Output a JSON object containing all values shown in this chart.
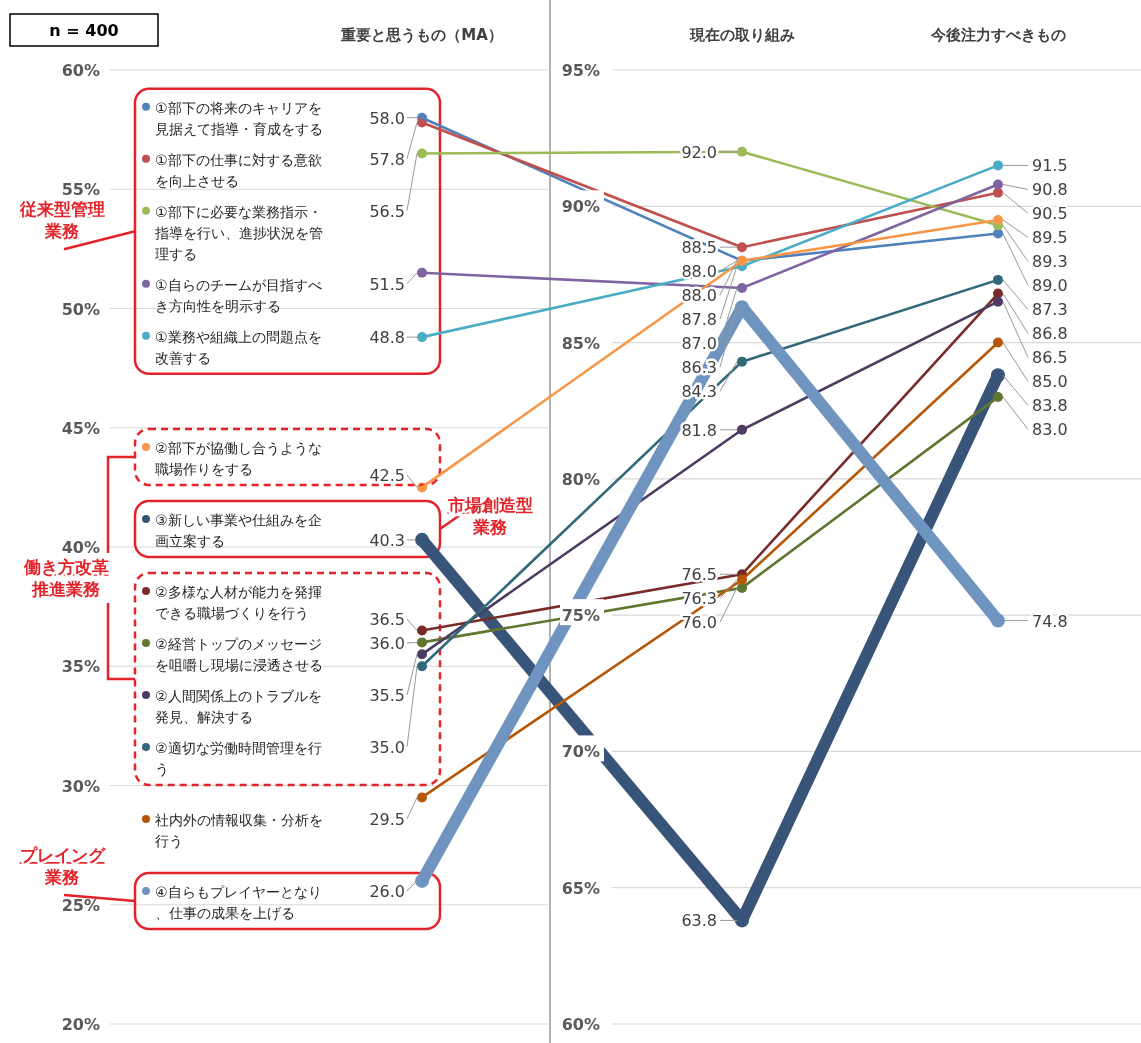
{
  "chart_data": [
    {
      "type": "scatter",
      "categories": [
        "重要と思うもの（MA）"
      ],
      "series": [
        {
          "name": "①部下の将来のキャリアを見据えて指導・育成をする",
          "color": "#4f81bd",
          "values": [
            58.0
          ],
          "value_labels": [
            "58.0"
          ]
        },
        {
          "name": "①部下の仕事に対する意欲を向上させる",
          "color": "#c0504d",
          "values": [
            57.8
          ],
          "value_labels": [
            "57.8"
          ]
        },
        {
          "name": "①部下に必要な業務指示・指導を行い、進捗状況を管理する",
          "color": "#9bbb59",
          "values": [
            56.5
          ],
          "value_labels": [
            "56.5"
          ]
        },
        {
          "name": "①自らのチームが目指すべき方向性を明示する",
          "color": "#8064a2",
          "values": [
            51.5
          ],
          "value_labels": [
            "51.5"
          ]
        },
        {
          "name": "①業務や組織上の問題点を改善する",
          "color": "#4bacc6",
          "values": [
            48.8
          ],
          "value_labels": [
            "48.8"
          ]
        },
        {
          "name": "②部下が協働し合うような職場作りをする",
          "color": "#f79646",
          "values": [
            42.5
          ],
          "value_labels": [
            "42.5"
          ]
        },
        {
          "name": "③新しい事業や仕組みを企画立案する",
          "color": "#385579",
          "values": [
            40.3
          ],
          "value_labels": [
            "40.3"
          ]
        },
        {
          "name": "②多様な人材が能力を発揮できる職場づくりを行う",
          "color": "#772c2a",
          "values": [
            36.5
          ],
          "value_labels": [
            "36.5"
          ]
        },
        {
          "name": "②経営トップのメッセージを咀嚼し現場に浸透させる",
          "color": "#5f7530",
          "values": [
            36.0
          ],
          "value_labels": [
            "36.0"
          ]
        },
        {
          "name": "②人間関係上のトラブルを発見、解決する",
          "color": "#4d3b62",
          "values": [
            35.5
          ],
          "value_labels": [
            "35.5"
          ]
        },
        {
          "name": "②適切な労働時間管理を行う",
          "color": "#31697a",
          "values": [
            35.0
          ],
          "value_labels": [
            "35.0"
          ]
        },
        {
          "name": "社内外の情報収集・分析を行う",
          "color": "#b65708",
          "values": [
            29.5
          ],
          "value_labels": [
            "29.5"
          ]
        },
        {
          "name": "④自らもプレイヤーとなり、仕事の成果を上げる",
          "color": "#7094c0",
          "values": [
            26.0
          ],
          "value_labels": [
            "26.0"
          ]
        }
      ],
      "ylim": [
        20,
        60
      ],
      "yticks": [
        {
          "value": 20,
          "label": "20%"
        },
        {
          "value": 25,
          "label": "25%"
        },
        {
          "value": 30,
          "label": "30%"
        },
        {
          "value": 35,
          "label": "35%"
        },
        {
          "value": 40,
          "label": "40%"
        },
        {
          "value": 45,
          "label": "45%"
        },
        {
          "value": 50,
          "label": "50%"
        },
        {
          "value": 55,
          "label": "55%"
        },
        {
          "value": 60,
          "label": "60%"
        }
      ],
      "grid": "y",
      "marker": "circle",
      "legend": "left",
      "annotations": [
        "n = 400",
        "従来型管理業務",
        "市場創造型業務",
        "働き方改革推進業務",
        "プレイング業務"
      ]
    },
    {
      "type": "line",
      "categories": [
        "現在の取り組み",
        "今後注力すべきもの"
      ],
      "series": [
        {
          "color": "#4f81bd",
          "values": [
            88.0,
            89.0
          ],
          "value_labels": [
            "88.0",
            "89.0"
          ]
        },
        {
          "color": "#c0504d",
          "values": [
            88.5,
            90.5
          ],
          "value_labels": [
            "88.5",
            "90.5"
          ]
        },
        {
          "color": "#9bbb59",
          "values": [
            92.0,
            89.3
          ],
          "value_labels": [
            "92.0",
            "89.3"
          ]
        },
        {
          "color": "#8064a2",
          "values": [
            87.0,
            90.8
          ],
          "value_labels": [
            "87.0",
            "90.8"
          ]
        },
        {
          "color": "#4bacc6",
          "values": [
            87.8,
            91.5
          ],
          "value_labels": [
            "87.8",
            "91.5"
          ]
        },
        {
          "color": "#f79646",
          "values": [
            88.0,
            89.5
          ],
          "value_labels": [
            "88.0",
            "89.5"
          ]
        },
        {
          "color": "#385579",
          "values": [
            63.8,
            83.8
          ],
          "value_labels": [
            "63.8",
            "83.8"
          ]
        },
        {
          "color": "#772c2a",
          "values": [
            76.5,
            86.8
          ],
          "value_labels": [
            "76.5",
            "86.8"
          ]
        },
        {
          "color": "#5f7530",
          "values": [
            76.0,
            83.0
          ],
          "value_labels": [
            "76.0",
            "83.0"
          ]
        },
        {
          "color": "#4d3b62",
          "values": [
            81.8,
            86.5
          ],
          "value_labels": [
            "81.8",
            "86.5"
          ]
        },
        {
          "color": "#31697a",
          "values": [
            84.3,
            87.3
          ],
          "value_labels": [
            "84.3",
            "87.3"
          ]
        },
        {
          "color": "#b65708",
          "values": [
            76.3,
            85.0
          ],
          "value_labels": [
            "76.3",
            "85.0"
          ]
        },
        {
          "color": "#7094c0",
          "values": [
            86.3,
            74.8
          ],
          "value_labels": [
            "86.3",
            "74.8"
          ]
        }
      ],
      "ylim": [
        60,
        95
      ],
      "yticks": [
        {
          "value": 60,
          "label": "60%"
        },
        {
          "value": 65,
          "label": "65%"
        },
        {
          "value": 70,
          "label": "70%"
        },
        {
          "value": 75,
          "label": "75%"
        },
        {
          "value": 80,
          "label": "80%"
        },
        {
          "value": 85,
          "label": "85%"
        },
        {
          "value": 90,
          "label": "90%"
        },
        {
          "value": 95,
          "label": "95%"
        }
      ],
      "grid": "y",
      "marker": "circle"
    }
  ]
}
